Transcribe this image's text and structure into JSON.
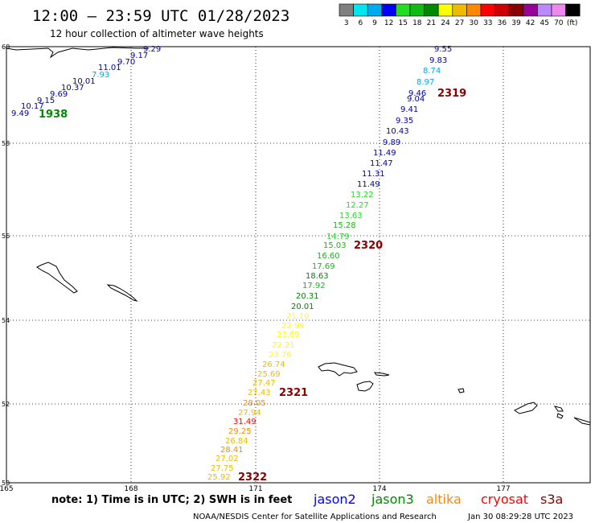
{
  "header": {
    "title": "12:00 – 23:59 UTC 01/28/2023",
    "subtitle": "12 hour collection of altimeter wave heights"
  },
  "legend": {
    "unit_label": "(ft)",
    "bins": [
      {
        "label": "3",
        "color": "#7f7f7f"
      },
      {
        "label": "6",
        "color": "#00e5ee"
      },
      {
        "label": "9",
        "color": "#00aaee"
      },
      {
        "label": "12",
        "color": "#0000ff"
      },
      {
        "label": "15",
        "color": "#22dd22"
      },
      {
        "label": "18",
        "color": "#11bb11"
      },
      {
        "label": "21",
        "color": "#008800"
      },
      {
        "label": "24",
        "color": "#ffff00"
      },
      {
        "label": "27",
        "color": "#eebb00"
      },
      {
        "label": "30",
        "color": "#ff8800"
      },
      {
        "label": "33",
        "color": "#ff0000"
      },
      {
        "label": "36",
        "color": "#cc0000"
      },
      {
        "label": "39",
        "color": "#880000"
      },
      {
        "label": "42",
        "color": "#990099"
      },
      {
        "label": "45",
        "color": "#bb88ff"
      },
      {
        "label": "70",
        "color": "#ee88ee"
      },
      {
        "label": "",
        "color": "#000000"
      }
    ]
  },
  "map": {
    "lat_labels": [
      "60",
      "58",
      "56",
      "54",
      "52",
      "50"
    ],
    "lon_labels": [
      "165",
      "168",
      "171",
      "174",
      "177"
    ],
    "time_labels": [
      {
        "text": "1938",
        "color": "#008800"
      },
      {
        "text": "2319",
        "color": "#880000"
      },
      {
        "text": "2320",
        "color": "#880000"
      },
      {
        "text": "2321",
        "color": "#880000"
      },
      {
        "text": "2322",
        "color": "#880000"
      }
    ],
    "track_a": [
      {
        "v": "9.49",
        "color": "#0000aa"
      },
      {
        "v": "10.17",
        "color": "#0000aa"
      },
      {
        "v": "9.15",
        "color": "#0000aa"
      },
      {
        "v": "9.69",
        "color": "#0000aa"
      },
      {
        "v": "10.37",
        "color": "#0000aa"
      },
      {
        "v": "10.01",
        "color": "#0000aa"
      },
      {
        "v": "7.93",
        "color": "#00aaee"
      },
      {
        "v": "11.01",
        "color": "#0000aa"
      },
      {
        "v": "9.70",
        "color": "#0000aa"
      },
      {
        "v": "9.17",
        "color": "#0000aa"
      },
      {
        "v": "9.29",
        "color": "#0000aa"
      }
    ],
    "track_b": [
      {
        "v": "9.55",
        "color": "#0000aa"
      },
      {
        "v": "9.83",
        "color": "#0000aa"
      },
      {
        "v": "8.74",
        "color": "#00aaee"
      },
      {
        "v": "8.97",
        "color": "#00aaee"
      },
      {
        "v": "9.46",
        "color": "#0000aa"
      },
      {
        "v": "9.04",
        "color": "#0000aa"
      },
      {
        "v": "9.41",
        "color": "#0000aa"
      },
      {
        "v": "9.35",
        "color": "#0000aa"
      },
      {
        "v": "10.43",
        "color": "#0000aa"
      },
      {
        "v": "9.89",
        "color": "#0000aa"
      },
      {
        "v": "11.49",
        "color": "#0000aa"
      },
      {
        "v": "11.47",
        "color": "#0000aa"
      },
      {
        "v": "11.31",
        "color": "#0000aa"
      },
      {
        "v": "11.49",
        "color": "#0000aa"
      },
      {
        "v": "13.22",
        "color": "#22dd22"
      },
      {
        "v": "12.27",
        "color": "#22dd22"
      },
      {
        "v": "13.63",
        "color": "#22dd22"
      },
      {
        "v": "15.28",
        "color": "#11bb11"
      },
      {
        "v": "14.79",
        "color": "#22dd22"
      },
      {
        "v": "15.03",
        "color": "#11bb11"
      },
      {
        "v": "16.60",
        "color": "#11bb11"
      },
      {
        "v": "17.69",
        "color": "#11bb11"
      },
      {
        "v": "18.63",
        "color": "#008800"
      },
      {
        "v": "17.92",
        "color": "#11bb11"
      },
      {
        "v": "20.31",
        "color": "#008800"
      },
      {
        "v": "20.01",
        "color": "#008800"
      },
      {
        "v": "21.10",
        "color": "#ffff00"
      },
      {
        "v": "22.98",
        "color": "#ffff00"
      },
      {
        "v": "23.69",
        "color": "#ffff00"
      },
      {
        "v": "22.21",
        "color": "#ffff00"
      },
      {
        "v": "23.76",
        "color": "#ffff00"
      },
      {
        "v": "26.74",
        "color": "#eebb00"
      },
      {
        "v": "25.69",
        "color": "#eebb00"
      },
      {
        "v": "27.47",
        "color": "#eebb00"
      },
      {
        "v": "27.43",
        "color": "#eebb00"
      },
      {
        "v": "28.05",
        "color": "#ff8800"
      },
      {
        "v": "27.94",
        "color": "#eebb00"
      },
      {
        "v": "31.49",
        "color": "#ff0000"
      },
      {
        "v": "29.25",
        "color": "#ff8800"
      },
      {
        "v": "26.84",
        "color": "#eebb00"
      },
      {
        "v": "28.41",
        "color": "#ff8800"
      },
      {
        "v": "27.02",
        "color": "#eebb00"
      },
      {
        "v": "27.75",
        "color": "#eebb00"
      },
      {
        "v": "25.92",
        "color": "#eebb00"
      }
    ]
  },
  "footer": {
    "note": "note:  1) Time is in UTC;  2) SWH is in feet",
    "satellites": [
      {
        "name": "jason2",
        "color": "#0000ff"
      },
      {
        "name": "jason3",
        "color": "#008800"
      },
      {
        "name": "altika",
        "color": "#ff8800"
      },
      {
        "name": "cryosat",
        "color": "#ff0000"
      },
      {
        "name": "s3a",
        "color": "#880000"
      }
    ],
    "credit": "NOAA/NESDIS Center for Satellite Applications and Research",
    "timestamp": "Jan 30 08:29:28 UTC 2023"
  }
}
